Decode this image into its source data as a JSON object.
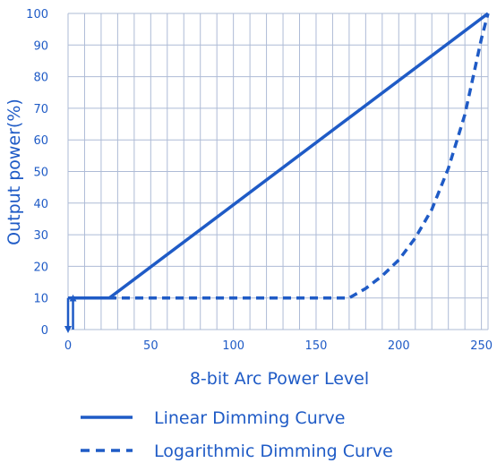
{
  "chart_data": {
    "type": "line",
    "xlabel": "8-bit Arc Power Level",
    "ylabel": "Output power(%)",
    "xlim": [
      0,
      254
    ],
    "ylim": [
      0,
      100
    ],
    "xticks": [
      0,
      50,
      100,
      150,
      200,
      250
    ],
    "yticks": [
      0,
      10,
      20,
      30,
      40,
      50,
      60,
      70,
      80,
      90,
      100
    ],
    "x_minor_step": 10,
    "grid": true,
    "legend_position": "bottom",
    "colors": {
      "line": "#1f5bc6",
      "grid": "#aebbd6"
    },
    "series": [
      {
        "name": "Linear Dimming Curve",
        "style": "solid",
        "x": [
          0,
          25,
          254
        ],
        "y": [
          10,
          10,
          100
        ]
      },
      {
        "name": "Logarithmic Dimming Curve",
        "style": "dashed",
        "x": [
          0,
          50,
          100,
          150,
          170,
          180,
          190,
          200,
          210,
          220,
          230,
          240,
          245,
          250,
          252,
          254
        ],
        "y": [
          10,
          10,
          10,
          10,
          10,
          13,
          17,
          22,
          29,
          38,
          51,
          68,
          80,
          92,
          96,
          100
        ]
      }
    ],
    "annotations": [
      {
        "label": "off-state-arrow-down",
        "x": 0,
        "y_from": 10,
        "y_to": 0
      },
      {
        "label": "off-state-arrow-up",
        "x": 3,
        "y_from": 0,
        "y_to": 10
      }
    ]
  }
}
